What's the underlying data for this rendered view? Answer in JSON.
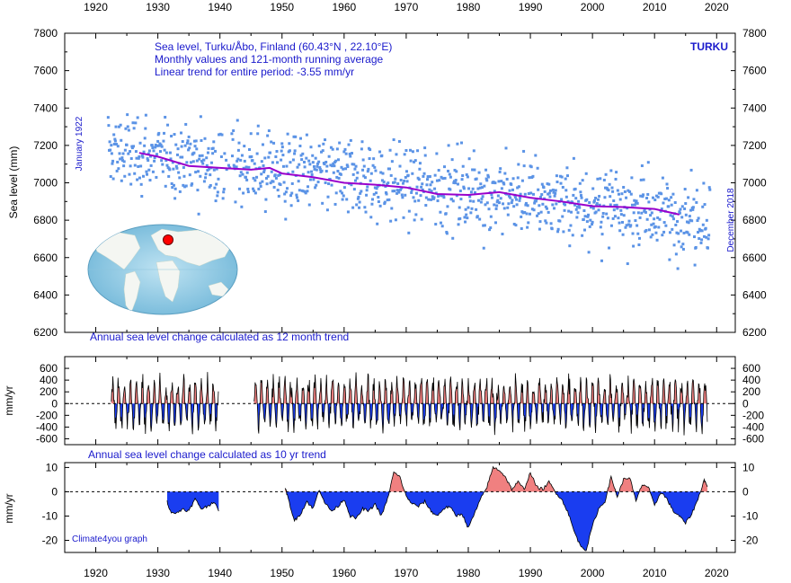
{
  "chart_data": [
    {
      "panel": "sea-level",
      "type": "scatter",
      "station_label": "TURKU",
      "annotation_lines": [
        "Sea level, Turku/Åbo, Finland (60.43°N , 22.10°E)",
        "Monthly values and 121-month running average",
        "Linear trend for entire period: -3.55 mm/yr"
      ],
      "start_label": "January 1922",
      "end_label": "December 2018",
      "ylabel": "Sea level (mm)",
      "xlim": [
        1915,
        2023
      ],
      "ylim": [
        6200,
        7800
      ],
      "x_ticks": [
        1920,
        1930,
        1940,
        1950,
        1960,
        1970,
        1980,
        1990,
        2000,
        2010,
        2020
      ],
      "y_ticks": [
        6200,
        6400,
        6600,
        6800,
        7000,
        7200,
        7400,
        7600,
        7800
      ],
      "series": [
        {
          "kind": "monthly-points",
          "color": "#5b93e6",
          "x_start": 1922.0,
          "x_end": 2018.92,
          "trend_start": 7170,
          "trend_end": 6810,
          "spread": 170
        },
        {
          "kind": "running-average",
          "color": "#9900cc",
          "x": [
            1927,
            1930,
            1935,
            1940,
            1945,
            1948,
            1950,
            1955,
            1960,
            1965,
            1970,
            1975,
            1980,
            1985,
            1990,
            1995,
            2000,
            2005,
            2010,
            2014
          ],
          "y": [
            7160,
            7140,
            7090,
            7080,
            7070,
            7080,
            7050,
            7030,
            7000,
            6990,
            6975,
            6940,
            6935,
            6950,
            6920,
            6900,
            6875,
            6870,
            6860,
            6830
          ]
        }
      ]
    },
    {
      "panel": "annual-change",
      "type": "area",
      "title": "Annual sea level change calculated as 12 month trend",
      "ylabel": "mm/yr",
      "ylim": [
        -700,
        800
      ],
      "y_ticks": [
        -600,
        -400,
        -200,
        0,
        200,
        400,
        600
      ],
      "positive_color": "#f08080",
      "negative_color": "#1a3df0",
      "segments": [
        [
          1922.5,
          1939.8
        ],
        [
          1945.5,
          2018.5
        ]
      ],
      "amplitude": 380
    },
    {
      "panel": "decadal-change",
      "type": "area",
      "title": "Annual sea level change calculated as 10 yr trend",
      "ylabel": "mm/yr",
      "ylim": [
        -25,
        12
      ],
      "y_ticks": [
        -20,
        -10,
        0,
        10
      ],
      "positive_color": "#f08080",
      "negative_color": "#1a3df0",
      "segments": [
        {
          "x": [
            1931.5,
            1932,
            1933,
            1934,
            1935,
            1936,
            1937,
            1938,
            1939,
            1939.8
          ],
          "y": [
            -4,
            -8,
            -9,
            -7,
            -8,
            -3,
            -7,
            -6,
            -4,
            -8
          ]
        },
        {
          "x": [
            1950.5,
            1951,
            1952,
            1953,
            1954,
            1955,
            1956,
            1957,
            1958,
            1959,
            1960,
            1961,
            1962,
            1963,
            1964,
            1965,
            1966,
            1967,
            1968,
            1969,
            1970,
            1971,
            1972,
            1973,
            1974,
            1975,
            1976,
            1977,
            1978,
            1979,
            1980,
            1981,
            1982,
            1983,
            1984,
            1985,
            1986,
            1987,
            1988,
            1989,
            1990,
            1991,
            1992,
            1993,
            1994,
            1995,
            1996,
            1997,
            1998,
            1999,
            2000,
            2001,
            2002,
            2003,
            2004,
            2005,
            2006,
            2007,
            2008,
            2009,
            2010,
            2011,
            2012,
            2013,
            2014,
            2015,
            2016,
            2017,
            2018,
            2018.5
          ],
          "y": [
            2,
            -3,
            -12,
            -9,
            -4,
            -7,
            1,
            -5,
            -8,
            -6,
            -3,
            -10,
            -11,
            -7,
            -8,
            -5,
            -10,
            -3,
            8,
            6,
            -2,
            -5,
            -6,
            -4,
            -8,
            -10,
            -7,
            -6,
            -10,
            -9,
            -15,
            -9,
            -3,
            2,
            10,
            9,
            6,
            1,
            4,
            1,
            8,
            2,
            1,
            4,
            0,
            -3,
            -8,
            -16,
            -22,
            -24,
            -14,
            -7,
            -4,
            6,
            -2,
            5,
            6,
            -4,
            3,
            2,
            -6,
            0,
            -3,
            -8,
            -10,
            -13,
            -9,
            -3,
            5,
            2
          ]
        }
      ]
    }
  ],
  "credit": "Climate4you graph"
}
